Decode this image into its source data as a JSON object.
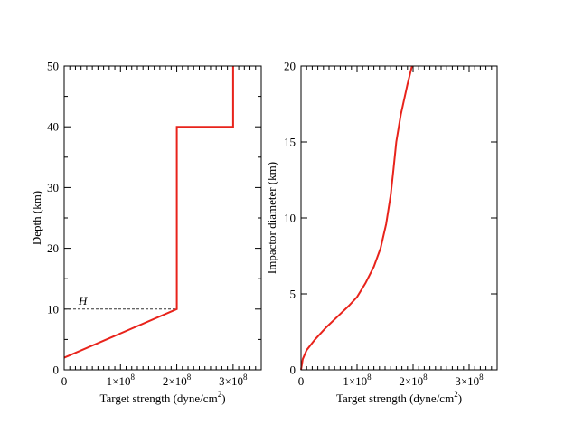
{
  "chart_data": [
    {
      "type": "line",
      "ylabel": "Depth (km)",
      "xlabel_main": "Target strength (dyne/cm",
      "xlabel_sup": "2",
      "xlabel_tail": ")",
      "xlim": [
        0,
        350000000
      ],
      "ylim": [
        0,
        50
      ],
      "xticks": [
        {
          "value": 0,
          "mant": "0",
          "exp": ""
        },
        {
          "value": 100000000,
          "mant": "1×10",
          "exp": "8"
        },
        {
          "value": 200000000,
          "mant": "2×10",
          "exp": "8"
        },
        {
          "value": 300000000,
          "mant": "3×10",
          "exp": "8"
        }
      ],
      "yticks": [
        0,
        10,
        20,
        30,
        40,
        50
      ],
      "series": [
        {
          "color": "#e8231b",
          "x": [
            0,
            200000000,
            200000000,
            300000000,
            300000000
          ],
          "y": [
            2,
            10,
            40,
            40,
            50
          ]
        }
      ],
      "annotation": {
        "label": "H",
        "y": 10,
        "x_from": 0,
        "x_to": 200000000,
        "style": "dashed",
        "color": "#333333"
      }
    },
    {
      "type": "line",
      "ylabel": "Impactor diameter (km)",
      "xlabel_main": "Target strength (dyne/cm",
      "xlabel_sup": "2",
      "xlabel_tail": ")",
      "xlim": [
        0,
        350000000
      ],
      "ylim": [
        0,
        20
      ],
      "xticks": [
        {
          "value": 0,
          "mant": "0",
          "exp": ""
        },
        {
          "value": 100000000,
          "mant": "1×10",
          "exp": "8"
        },
        {
          "value": 200000000,
          "mant": "2×10",
          "exp": "8"
        },
        {
          "value": 300000000,
          "mant": "3×10",
          "exp": "8"
        }
      ],
      "yticks": [
        0,
        5,
        10,
        15,
        20
      ],
      "series": [
        {
          "color": "#e8231b",
          "x": [
            0,
            3000000,
            10000000,
            25000000,
            45000000,
            65000000,
            85000000,
            100000000,
            115000000,
            130000000,
            142000000,
            152000000,
            160000000,
            165000000,
            170000000,
            178000000,
            190000000,
            198000000
          ],
          "y": [
            0,
            0.7,
            1.3,
            2.0,
            2.8,
            3.5,
            4.2,
            4.8,
            5.7,
            6.8,
            8.0,
            9.6,
            11.5,
            13.2,
            15.0,
            16.8,
            18.8,
            20
          ]
        }
      ]
    }
  ]
}
